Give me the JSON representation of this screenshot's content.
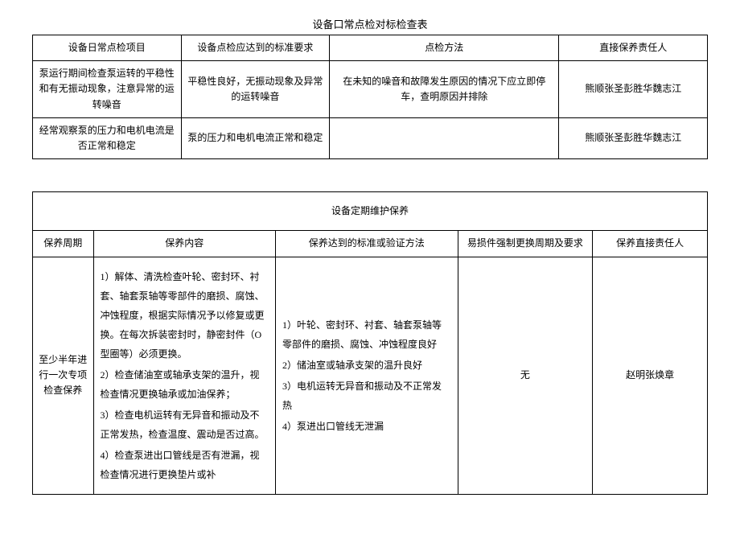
{
  "table1": {
    "title": "设备口常点检对标检查表",
    "headers": [
      "设备日常点检项目",
      "设备点检应达到的标准要求",
      "点检方法",
      "直接保养责任人"
    ],
    "rows": [
      {
        "c1": "泵运行期间检查泵运转的平稳性和有无振动现象，注意异常的运转噪音",
        "c2": "平稳性良好，无振动现象及异常的运转噪音",
        "c3": "在未知的噪音和故障发生原因的情况下应立即停车，查明原因并排除",
        "c4": "熊顺张圣彭胜华魏志江"
      },
      {
        "c1": "经常观察泵的压力和电机电流是否正常和稳定",
        "c2": "泵的压力和电机电流正常和稳定",
        "c3": "",
        "c4": "熊顺张圣彭胜华魏志江"
      }
    ],
    "col_widths": [
      "22%",
      "22%",
      "34%",
      "22%"
    ]
  },
  "table2": {
    "top_title": "设备定期维护保养",
    "headers": [
      "保养周期",
      "保养内容",
      "保养达到的标准或验证方法",
      "易损件强制更换周期及要求",
      "保养直接责任人"
    ],
    "row": {
      "c1": "至少半年进行一次专项检查保养",
      "c2_lines": [
        "1）解体、清洗检查叶轮、密封环、衬套、轴套泵轴等零部件的磨损、腐蚀、冲蚀程度，根据实际情况予以修复或更换。在每次拆装密封时，静密封件（O 型圈等）必须更换。",
        "2）检查储油室或轴承支架的温升，视检查情况更换轴承或加油保养；",
        "3）检查电机运转有无异音和振动及不正常发热，检查温度、震动是否过高。",
        "4）检查泵进出口管线是否有泄漏，视检查情况进行更换垫片或补"
      ],
      "c3_lines": [
        "1）叶轮、密封环、衬套、轴套泵轴等零部件的磨损、腐蚀、冲蚀程度良好",
        "2）储油室或轴承支架的温升良好",
        "3）电机运转无异音和振动及不正常发热",
        "4）泵进出口管线无泄漏"
      ],
      "c4": "无",
      "c5": "赵明张焕章"
    },
    "col_widths": [
      "9%",
      "27%",
      "27%",
      "20%",
      "17%"
    ]
  }
}
